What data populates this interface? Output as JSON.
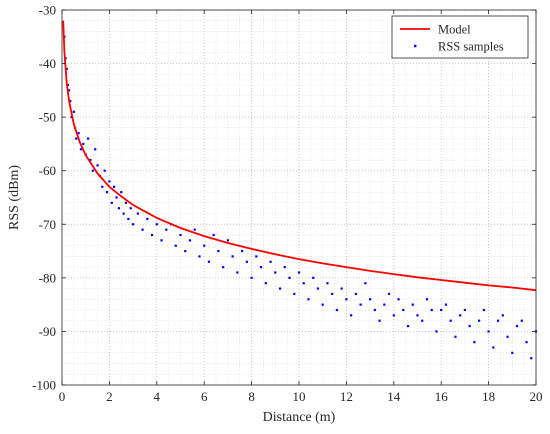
{
  "chart_data": {
    "type": "scatter",
    "xlabel": "Distance (m)",
    "ylabel": "RSS (dBm)",
    "xlim": [
      0,
      20
    ],
    "ylim": [
      -100,
      -30
    ],
    "xticks": [
      0,
      2,
      4,
      6,
      8,
      10,
      12,
      14,
      16,
      18,
      20
    ],
    "yticks": [
      -100,
      -90,
      -80,
      -70,
      -60,
      -50,
      -40,
      -30
    ],
    "grid": true,
    "minor_grid": true,
    "legend_position": "top-right",
    "series": [
      {
        "name": "Model",
        "kind": "line",
        "color": "#ff0000",
        "x": [
          0.05,
          0.1,
          0.2,
          0.3,
          0.5,
          0.75,
          1,
          1.5,
          2,
          2.5,
          3,
          4,
          5,
          6,
          7,
          8,
          9,
          10,
          11,
          12,
          13,
          14,
          15,
          16,
          17,
          18,
          19,
          20
        ],
        "y": [
          -32.0,
          -37.8,
          -43.6,
          -47.0,
          -51.3,
          -54.7,
          -57.1,
          -60.5,
          -63.0,
          -64.8,
          -66.4,
          -68.8,
          -70.7,
          -72.2,
          -73.5,
          -74.6,
          -75.6,
          -76.5,
          -77.3,
          -78.0,
          -78.7,
          -79.3,
          -79.9,
          -80.4,
          -80.9,
          -81.4,
          -81.8,
          -82.3
        ]
      },
      {
        "name": "RSS samples",
        "kind": "scatter",
        "color": "#0000ff",
        "x": [
          0.1,
          0.15,
          0.2,
          0.25,
          0.3,
          0.35,
          0.4,
          0.5,
          0.55,
          0.6,
          0.7,
          0.8,
          0.9,
          1.0,
          1.1,
          1.2,
          1.3,
          1.4,
          1.5,
          1.6,
          1.7,
          1.8,
          1.9,
          2.0,
          2.1,
          2.2,
          2.3,
          2.4,
          2.5,
          2.6,
          2.7,
          2.8,
          2.9,
          3.0,
          3.2,
          3.4,
          3.6,
          3.8,
          4.0,
          4.2,
          4.4,
          4.6,
          4.8,
          5.0,
          5.2,
          5.4,
          5.6,
          5.8,
          6.0,
          6.2,
          6.4,
          6.6,
          6.8,
          7.0,
          7.2,
          7.4,
          7.6,
          7.8,
          8.0,
          8.2,
          8.4,
          8.6,
          8.8,
          9.0,
          9.2,
          9.4,
          9.6,
          9.8,
          10.0,
          10.2,
          10.4,
          10.6,
          10.8,
          11.0,
          11.2,
          11.4,
          11.6,
          11.8,
          12.0,
          12.2,
          12.4,
          12.6,
          12.8,
          13.0,
          13.2,
          13.4,
          13.6,
          13.8,
          14.0,
          14.2,
          14.4,
          14.6,
          14.8,
          15.0,
          15.2,
          15.4,
          15.6,
          15.8,
          16.0,
          16.2,
          16.4,
          16.6,
          16.8,
          17.0,
          17.2,
          17.4,
          17.6,
          17.8,
          18.0,
          18.2,
          18.4,
          18.6,
          18.8,
          19.0,
          19.2,
          19.4,
          19.6,
          19.8,
          20.0
        ],
        "y": [
          -35,
          -39,
          -41,
          -44,
          -45,
          -47,
          -50,
          -49,
          -52,
          -54,
          -53,
          -56,
          -55,
          -57,
          -54,
          -58,
          -60,
          -56,
          -59,
          -61,
          -63,
          -60,
          -64,
          -62,
          -66,
          -63,
          -65,
          -67,
          -64,
          -68,
          -66,
          -69,
          -67,
          -70,
          -68,
          -71,
          -69,
          -72,
          -70,
          -73,
          -71,
          -70,
          -74,
          -72,
          -75,
          -73,
          -71,
          -76,
          -74,
          -77,
          -72,
          -75,
          -78,
          -73,
          -76,
          -79,
          -75,
          -77,
          -80,
          -76,
          -78,
          -81,
          -77,
          -79,
          -82,
          -78,
          -80,
          -83,
          -79,
          -81,
          -84,
          -80,
          -82,
          -85,
          -81,
          -83,
          -86,
          -82,
          -84,
          -87,
          -83,
          -85,
          -81,
          -84,
          -86,
          -88,
          -85,
          -83,
          -87,
          -84,
          -86,
          -89,
          -85,
          -87,
          -88,
          -84,
          -86,
          -90,
          -86,
          -85,
          -88,
          -91,
          -87,
          -86,
          -89,
          -92,
          -88,
          -86,
          -90,
          -93,
          -88,
          -87,
          -91,
          -94,
          -89,
          -88,
          -92,
          -95,
          -90
        ]
      }
    ]
  }
}
